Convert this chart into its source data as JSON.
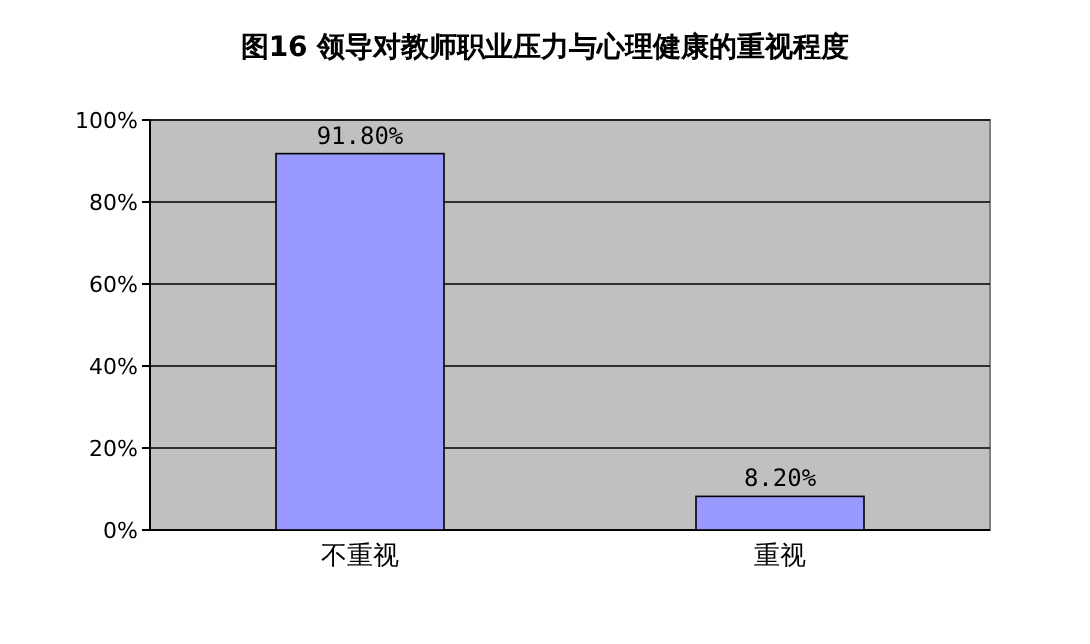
{
  "chart_data": {
    "type": "bar",
    "title": "图16 领导对教师职业压力与心理健康的重视程度",
    "categories": [
      "不重视",
      "重视"
    ],
    "values": [
      91.8,
      8.2
    ],
    "value_labels": [
      "91.80%",
      "8.20%"
    ],
    "color": "#9999ff",
    "ylim": [
      0,
      100
    ],
    "yticks": [
      {
        "value": 0,
        "label": "0%"
      },
      {
        "value": 20,
        "label": "20%"
      },
      {
        "value": 40,
        "label": "40%"
      },
      {
        "value": 60,
        "label": "60%"
      },
      {
        "value": 80,
        "label": "80%"
      },
      {
        "value": 100,
        "label": "100%"
      }
    ],
    "grid": "y"
  }
}
